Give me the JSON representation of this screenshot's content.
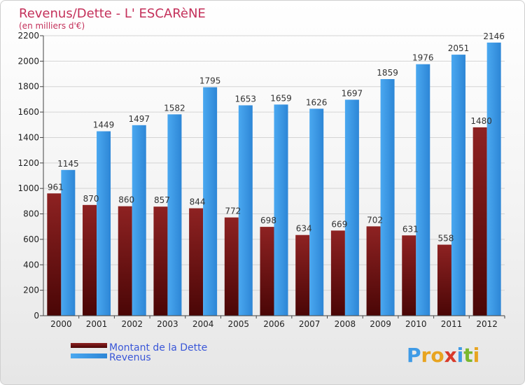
{
  "chart_data": {
    "type": "bar",
    "title": "Revenus/Dette - L' ESCARèNE",
    "subtitle": "(en milliers d'€)",
    "categories": [
      "2000",
      "2001",
      "2002",
      "2003",
      "2004",
      "2005",
      "2006",
      "2007",
      "2008",
      "2009",
      "2010",
      "2011",
      "2012"
    ],
    "series": [
      {
        "name": "Montant de la Dette",
        "color": "#7a1010",
        "values": [
          961,
          870,
          860,
          857,
          844,
          772,
          698,
          634,
          669,
          702,
          631,
          558,
          1480
        ]
      },
      {
        "name": "Revenus",
        "color": "#3f9be6",
        "values": [
          1145,
          1449,
          1497,
          1582,
          1795,
          1653,
          1659,
          1626,
          1697,
          1859,
          1976,
          2051,
          2146
        ]
      }
    ],
    "yticks": [
      0,
      200,
      400,
      600,
      800,
      1000,
      1200,
      1400,
      1600,
      1800,
      2000,
      2200
    ],
    "ylim": [
      0,
      2200
    ],
    "grid": true,
    "legend_position": "bottom-left"
  },
  "branding": {
    "logo_text": "Proxiti",
    "logo_letters": [
      "P",
      "r",
      "o",
      "x",
      "i",
      "t",
      "i"
    ],
    "logo_colors": [
      "#3f9be6",
      "#e8a420",
      "#e8a420",
      "#d83a2a",
      "#3f9be6",
      "#7ab82e",
      "#e8a420"
    ]
  }
}
